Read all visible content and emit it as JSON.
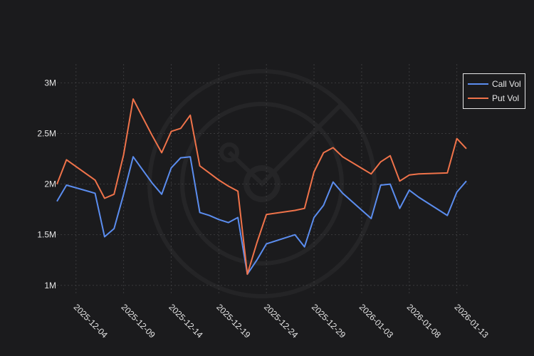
{
  "chart_data": {
    "type": "line",
    "title": "",
    "xlabel": "",
    "ylabel": "",
    "grid": true,
    "legend_position": "top-right",
    "background": "#1b1b1d",
    "x_ticks": [
      "2025-12-04",
      "2025-12-09",
      "2025-12-14",
      "2025-12-19",
      "2025-12-24",
      "2025-12-29",
      "2026-01-03",
      "2026-01-08",
      "2026-01-13"
    ],
    "y_ticks": [
      {
        "value": 1000000,
        "label": "1M"
      },
      {
        "value": 1500000,
        "label": "1.5M"
      },
      {
        "value": 2000000,
        "label": "2M"
      },
      {
        "value": 2500000,
        "label": "2.5M"
      },
      {
        "value": 3000000,
        "label": "3M"
      }
    ],
    "xlim": [
      "2025-12-02",
      "2026-01-14"
    ],
    "ylim": [
      900000,
      3150000
    ],
    "x": [
      "2025-12-02",
      "2025-12-03",
      "2025-12-06",
      "2025-12-07",
      "2025-12-08",
      "2025-12-09",
      "2025-12-10",
      "2025-12-11",
      "2025-12-12",
      "2025-12-13",
      "2025-12-14",
      "2025-12-15",
      "2025-12-16",
      "2025-12-17",
      "2025-12-18",
      "2025-12-19",
      "2025-12-20",
      "2025-12-21",
      "2025-12-22",
      "2025-12-23",
      "2025-12-24",
      "2025-12-27",
      "2025-12-28",
      "2025-12-29",
      "2025-12-30",
      "2025-12-31",
      "2026-01-01",
      "2026-01-04",
      "2026-01-05",
      "2026-01-06",
      "2026-01-07",
      "2026-01-08",
      "2026-01-09",
      "2026-01-12",
      "2026-01-13",
      "2026-01-14"
    ],
    "series": [
      {
        "name": "Call Vol",
        "color": "#5b8def",
        "values": [
          1830000,
          1990000,
          1910000,
          1480000,
          1560000,
          1900000,
          2270000,
          2140000,
          2010000,
          1900000,
          2160000,
          2260000,
          2270000,
          1720000,
          1690000,
          1650000,
          1620000,
          1670000,
          1110000,
          1250000,
          1410000,
          1500000,
          1380000,
          1670000,
          1790000,
          2020000,
          1910000,
          1660000,
          1990000,
          2000000,
          1760000,
          1940000,
          1870000,
          1690000,
          1920000,
          2030000
        ]
      },
      {
        "name": "Put Vol",
        "color": "#f0734a",
        "values": [
          2000000,
          2240000,
          2040000,
          1860000,
          1900000,
          2290000,
          2840000,
          2660000,
          2480000,
          2310000,
          2520000,
          2550000,
          2680000,
          2180000,
          2110000,
          2040000,
          1980000,
          1930000,
          1110000,
          1420000,
          1700000,
          1740000,
          1760000,
          2120000,
          2310000,
          2360000,
          2270000,
          2100000,
          2220000,
          2280000,
          2030000,
          2090000,
          2100000,
          2110000,
          2450000,
          2350000
        ]
      }
    ]
  }
}
